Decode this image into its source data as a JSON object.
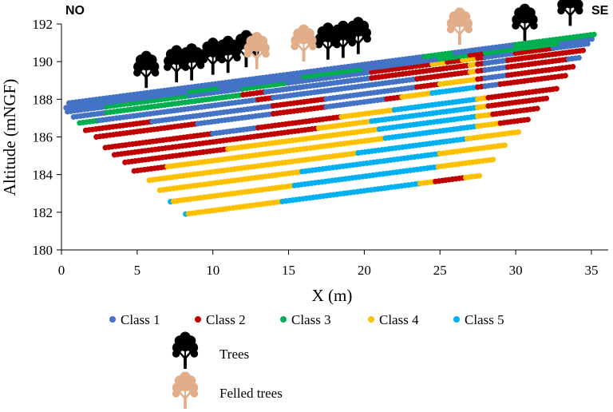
{
  "chart_data": {
    "type": "scatter",
    "title": "",
    "xlabel": "X (m)",
    "ylabel": "Altitude (mNGF)",
    "xlim": [
      0,
      36
    ],
    "ylim": [
      180,
      192
    ],
    "xticks": [
      "0",
      "5",
      "10",
      "15",
      "20",
      "25",
      "30",
      "35"
    ],
    "yticks": [
      "180",
      "182",
      "184",
      "186",
      "188",
      "190",
      "192"
    ],
    "corner_labels": {
      "left": "NO",
      "right": "SE"
    },
    "classes": [
      {
        "id": 1,
        "name": "Class 1",
        "color": "#4472C4"
      },
      {
        "id": 2,
        "name": "Class 2",
        "color": "#C00000"
      },
      {
        "id": 3,
        "name": "Class 3",
        "color": "#00B050"
      },
      {
        "id": 4,
        "name": "Class 4",
        "color": "#FFC000"
      },
      {
        "id": 5,
        "name": "Class 5",
        "color": "#00B0F0"
      }
    ],
    "row_slope": 0.105,
    "rows": [
      {
        "x0": 8.2,
        "alt0": 181.9,
        "segments": [
          [
            8.2,
            8.4,
            5
          ],
          [
            8.4,
            14.6,
            4
          ],
          [
            14.6,
            23.7,
            5
          ],
          [
            23.7,
            24.7,
            4
          ],
          [
            24.7,
            26.7,
            2
          ],
          [
            26.7,
            27.7,
            4
          ]
        ]
      },
      {
        "x0": 7.2,
        "alt0": 182.56,
        "segments": [
          [
            7.2,
            7.4,
            5
          ],
          [
            7.4,
            15.4,
            4
          ],
          [
            15.4,
            24.9,
            5
          ],
          [
            24.9,
            28.6,
            4
          ]
        ]
      },
      {
        "x0": 6.5,
        "alt0": 183.17,
        "segments": [
          [
            6.5,
            15.9,
            4
          ],
          [
            15.9,
            25.0,
            5
          ],
          [
            25.0,
            29.4,
            4
          ]
        ]
      },
      {
        "x0": 5.8,
        "alt0": 183.7,
        "segments": [
          [
            5.8,
            19.6,
            4
          ],
          [
            19.6,
            26.8,
            5
          ],
          [
            26.8,
            30.2,
            4
          ]
        ]
      },
      {
        "x0": 4.8,
        "alt0": 184.19,
        "segments": [
          [
            4.8,
            7.0,
            2
          ],
          [
            7.0,
            21.4,
            4
          ],
          [
            21.4,
            27.5,
            5
          ],
          [
            27.5,
            29.0,
            4
          ],
          [
            29.0,
            30.9,
            2
          ]
        ]
      },
      {
        "x0": 4.2,
        "alt0": 184.65,
        "segments": [
          [
            4.2,
            11.0,
            2
          ],
          [
            11.0,
            21.0,
            4
          ],
          [
            21.0,
            27.5,
            5
          ],
          [
            27.5,
            28.5,
            4
          ],
          [
            28.5,
            31.6,
            2
          ]
        ]
      },
      {
        "x0": 3.5,
        "alt0": 185.05,
        "segments": [
          [
            3.5,
            17.0,
            2
          ],
          [
            17.0,
            20.5,
            4
          ],
          [
            20.5,
            27.5,
            5
          ],
          [
            27.5,
            28.2,
            4
          ],
          [
            28.2,
            32.2,
            2
          ]
        ]
      },
      {
        "x0": 2.9,
        "alt0": 185.43,
        "segments": [
          [
            2.9,
            10.0,
            2
          ],
          [
            10.0,
            13.0,
            1
          ],
          [
            13.0,
            18.5,
            2
          ],
          [
            18.5,
            22.0,
            4
          ],
          [
            22.0,
            27.5,
            5
          ],
          [
            27.5,
            28.2,
            4
          ],
          [
            28.2,
            32.8,
            2
          ]
        ]
      },
      {
        "x0": 2.3,
        "alt0": 186.0,
        "segments": [
          [
            2.3,
            9.0,
            2
          ],
          [
            9.0,
            14.0,
            1
          ],
          [
            14.0,
            17.5,
            2
          ],
          [
            17.5,
            21.5,
            1
          ],
          [
            21.5,
            22.5,
            2
          ],
          [
            22.5,
            24.5,
            4
          ],
          [
            24.5,
            27.5,
            5
          ],
          [
            27.5,
            28.0,
            2
          ],
          [
            28.0,
            29.0,
            1
          ],
          [
            29.0,
            33.3,
            2
          ]
        ]
      },
      {
        "x0": 1.6,
        "alt0": 186.35,
        "segments": [
          [
            1.6,
            6.0,
            2
          ],
          [
            6.0,
            14.0,
            1
          ],
          [
            14.0,
            17.5,
            2
          ],
          [
            17.5,
            23.5,
            1
          ],
          [
            23.5,
            25.0,
            2
          ],
          [
            25.0,
            27.5,
            4
          ],
          [
            27.5,
            28.0,
            2
          ],
          [
            28.0,
            29.5,
            1
          ],
          [
            29.5,
            33.8,
            2
          ]
        ]
      },
      {
        "x0": 1.2,
        "alt0": 186.74,
        "segments": [
          [
            1.2,
            2.5,
            3
          ],
          [
            2.5,
            13.0,
            1
          ],
          [
            13.0,
            14.0,
            2
          ],
          [
            14.0,
            23.5,
            1
          ],
          [
            23.5,
            27.0,
            2
          ],
          [
            27.0,
            27.5,
            4
          ],
          [
            27.5,
            28.0,
            2
          ],
          [
            28.0,
            29.5,
            1
          ],
          [
            29.5,
            33.5,
            2
          ],
          [
            33.5,
            34.2,
            1
          ]
        ]
      },
      {
        "x0": 0.8,
        "alt0": 187.06,
        "segments": [
          [
            0.8,
            3.0,
            1
          ],
          [
            3.0,
            12.0,
            3
          ],
          [
            12.0,
            13.5,
            2
          ],
          [
            13.5,
            20.5,
            1
          ],
          [
            20.5,
            27.0,
            2
          ],
          [
            27.0,
            27.5,
            4
          ],
          [
            27.5,
            28.0,
            2
          ],
          [
            28.0,
            29.5,
            1
          ],
          [
            29.5,
            34.6,
            2
          ]
        ]
      },
      {
        "x0": 0.4,
        "alt0": 187.34,
        "segments": [
          [
            0.4,
            3.0,
            1
          ],
          [
            3.0,
            8.5,
            3
          ],
          [
            8.5,
            12.0,
            1
          ],
          [
            12.0,
            15.0,
            3
          ],
          [
            15.0,
            20.5,
            1
          ],
          [
            20.5,
            24.5,
            2
          ],
          [
            24.5,
            25.5,
            4
          ],
          [
            25.5,
            26.5,
            2
          ],
          [
            26.5,
            27.5,
            4
          ],
          [
            27.5,
            28.0,
            2
          ],
          [
            28.0,
            30.0,
            1
          ],
          [
            30.0,
            32.5,
            2
          ],
          [
            32.5,
            34.9,
            1
          ]
        ]
      },
      {
        "x0": 0.3,
        "alt0": 187.55,
        "segments": [
          [
            0.3,
            8.5,
            1
          ],
          [
            8.5,
            10.5,
            3
          ],
          [
            10.5,
            16.0,
            1
          ],
          [
            16.0,
            20.0,
            3
          ],
          [
            20.0,
            25.0,
            1
          ],
          [
            25.0,
            27.0,
            3
          ],
          [
            27.0,
            28.0,
            2
          ],
          [
            28.0,
            33.0,
            3
          ],
          [
            33.0,
            35.1,
            1
          ]
        ]
      },
      {
        "x0": 0.5,
        "alt0": 187.8,
        "segments": [
          [
            0.5,
            24.0,
            1
          ],
          [
            24.0,
            26.0,
            3
          ],
          [
            26.0,
            30.0,
            1
          ],
          [
            30.0,
            35.3,
            3
          ]
        ]
      }
    ],
    "trees": [
      {
        "x": 5.6,
        "alt": 188.6
      },
      {
        "x": 7.6,
        "alt": 188.9
      },
      {
        "x": 8.6,
        "alt": 189.0
      },
      {
        "x": 10.0,
        "alt": 189.3
      },
      {
        "x": 11.0,
        "alt": 189.4
      },
      {
        "x": 12.2,
        "alt": 189.7
      },
      {
        "x": 17.6,
        "alt": 190.1
      },
      {
        "x": 18.6,
        "alt": 190.2
      },
      {
        "x": 19.6,
        "alt": 190.4
      },
      {
        "x": 30.6,
        "alt": 191.1
      },
      {
        "x": 33.6,
        "alt": 191.9
      }
    ],
    "felled_trees": [
      {
        "x": 12.9,
        "alt": 189.6
      },
      {
        "x": 16.0,
        "alt": 190.0
      },
      {
        "x": 26.3,
        "alt": 190.9
      }
    ],
    "tree_colors": {
      "trees": "#000000",
      "felled": "#E2AE8A"
    },
    "legend": {
      "trees_label": "Trees",
      "felled_label": "Felled trees",
      "placement": "bottom"
    }
  }
}
